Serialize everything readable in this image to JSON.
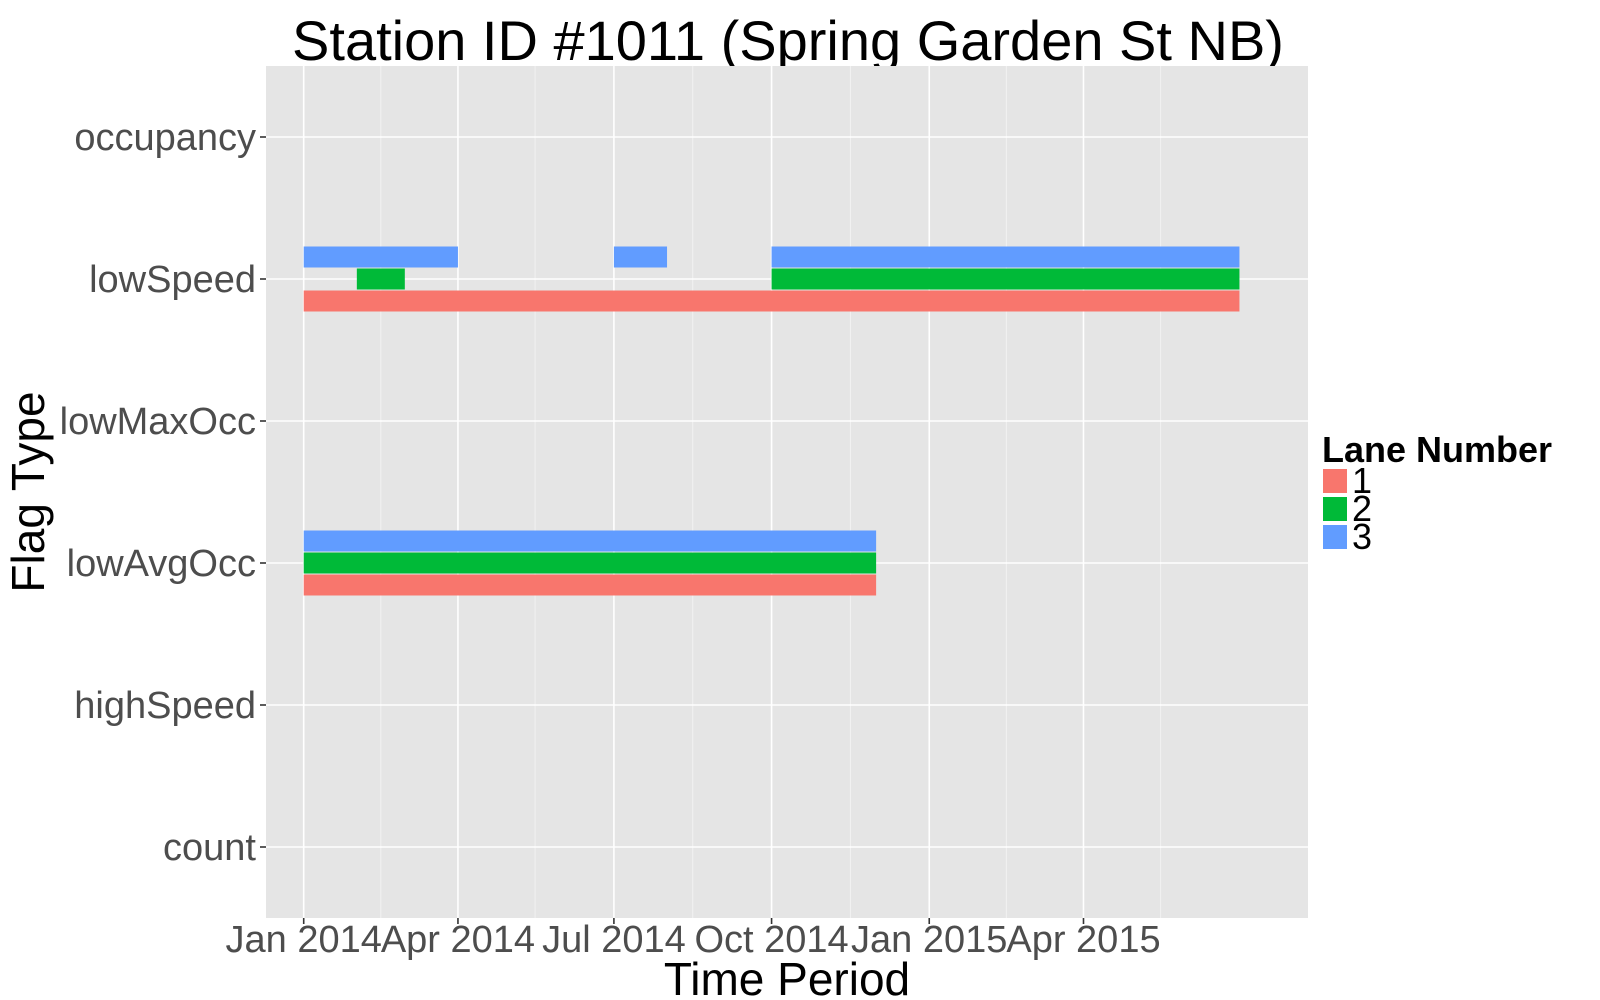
{
  "chart_data": {
    "type": "timeline",
    "title": "Station ID #1011 (Spring Garden St NB)",
    "xlabel": "Time Period",
    "ylabel": "Flag Type",
    "x_ticks": [
      "Jan 2014",
      "Apr 2014",
      "Jul 2014",
      "Oct 2014",
      "Jan 2015",
      "Apr 2015"
    ],
    "y_categories": [
      "count",
      "highSpeed",
      "lowAvgOcc",
      "lowMaxOcc",
      "lowSpeed",
      "occupancy"
    ],
    "xlim": [
      "2013-12-10",
      "2015-08-10"
    ],
    "grid": true,
    "legend": {
      "title": "Lane Number",
      "placement": "right",
      "entries": [
        {
          "label": "1",
          "color": "#F8766D"
        },
        {
          "label": "2",
          "color": "#00BA38"
        },
        {
          "label": "3",
          "color": "#619CFF"
        }
      ]
    },
    "series": [
      {
        "name": "1",
        "color": "#F8766D",
        "segments": [
          {
            "flag": "lowSpeed",
            "start": "2014-01-01",
            "end": "2015-07-01"
          },
          {
            "flag": "lowAvgOcc",
            "start": "2014-01-01",
            "end": "2014-12-01"
          }
        ]
      },
      {
        "name": "2",
        "color": "#00BA38",
        "segments": [
          {
            "flag": "lowSpeed",
            "start": "2014-02-01",
            "end": "2014-03-01"
          },
          {
            "flag": "lowSpeed",
            "start": "2014-10-01",
            "end": "2015-07-01"
          },
          {
            "flag": "lowAvgOcc",
            "start": "2014-01-01",
            "end": "2014-12-01"
          }
        ]
      },
      {
        "name": "3",
        "color": "#619CFF",
        "segments": [
          {
            "flag": "lowSpeed",
            "start": "2014-01-01",
            "end": "2014-04-01"
          },
          {
            "flag": "lowSpeed",
            "start": "2014-07-01",
            "end": "2014-08-01"
          },
          {
            "flag": "lowSpeed",
            "start": "2014-10-01",
            "end": "2015-07-01"
          },
          {
            "flag": "lowAvgOcc",
            "start": "2014-01-01",
            "end": "2014-12-01"
          }
        ]
      }
    ]
  }
}
